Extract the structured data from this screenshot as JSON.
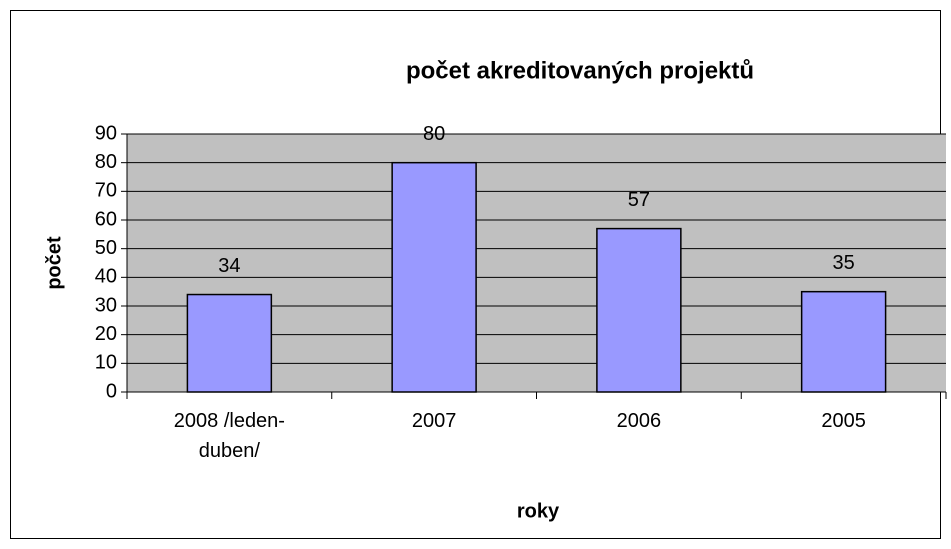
{
  "chart_data": {
    "type": "bar",
    "title": "počet akreditovaných projektů",
    "xlabel": "roky",
    "ylabel": "počet",
    "categories": [
      "2008 /leden-duben/",
      "2007",
      "2006",
      "2005"
    ],
    "values": [
      34,
      80,
      57,
      35
    ],
    "color": "#9999ff",
    "ylim": [
      0,
      90
    ],
    "yticks": [
      0,
      10,
      20,
      30,
      40,
      50,
      60,
      70,
      80,
      90
    ],
    "grid": true
  }
}
